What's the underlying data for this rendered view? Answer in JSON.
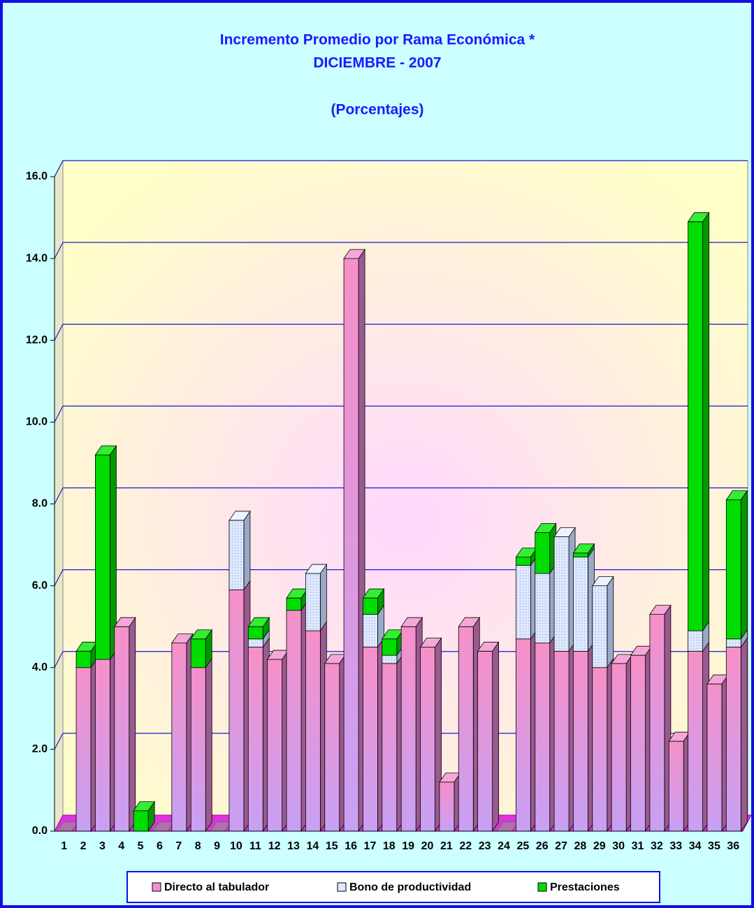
{
  "chart_data": {
    "type": "stacked-bar-3d",
    "title": "Incremento Promedio por Rama Económica *",
    "subtitle": "DICIEMBRE -  2007",
    "units": "(Porcentajes)",
    "categories": [
      "1",
      "2",
      "3",
      "4",
      "5",
      "6",
      "7",
      "8",
      "9",
      "10",
      "11",
      "12",
      "13",
      "14",
      "15",
      "16",
      "17",
      "18",
      "19",
      "20",
      "21",
      "22",
      "23",
      "24",
      "25",
      "26",
      "27",
      "28",
      "29",
      "30",
      "31",
      "32",
      "33",
      "34",
      "35",
      "36"
    ],
    "series": [
      {
        "name": "Directo al tabulador",
        "color": "#f38fd0",
        "values": [
          0,
          4.0,
          4.2,
          5.0,
          0,
          0,
          4.6,
          4.0,
          0,
          5.9,
          4.5,
          4.2,
          5.4,
          4.9,
          4.1,
          14.0,
          4.5,
          4.1,
          5.0,
          4.5,
          1.2,
          5.0,
          4.4,
          0,
          4.7,
          4.6,
          4.4,
          4.4,
          4.0,
          4.1,
          4.3,
          5.3,
          2.2,
          4.4,
          3.6,
          4.5
        ]
      },
      {
        "name": "Bono de productividad",
        "color": "#dde8ff",
        "values": [
          0,
          0,
          0,
          0,
          0,
          0,
          0,
          0,
          0,
          1.7,
          0.2,
          0,
          0,
          1.4,
          0,
          0,
          0.8,
          0.2,
          0,
          0,
          0,
          0,
          0,
          0,
          1.8,
          1.7,
          2.8,
          2.3,
          2.0,
          0,
          0,
          0,
          0,
          0.5,
          0,
          0.2
        ]
      },
      {
        "name": "Prestaciones",
        "color": "#00dd00",
        "values": [
          0,
          0.4,
          5.0,
          0,
          0.5,
          0,
          0,
          0.7,
          0,
          0,
          0.3,
          0,
          0.3,
          0,
          0,
          0,
          0.4,
          0.4,
          0,
          0,
          0,
          0,
          0,
          0,
          0.2,
          1.0,
          0,
          0.1,
          0,
          0,
          0,
          0,
          0,
          10.0,
          0,
          3.4
        ]
      }
    ],
    "ylim": [
      0,
      16
    ],
    "yticks": [
      {
        "value": 0,
        "label": "0.0"
      },
      {
        "value": 2,
        "label": "2.0"
      },
      {
        "value": 4,
        "label": "4.0"
      },
      {
        "value": 6,
        "label": "6.0"
      },
      {
        "value": 8,
        "label": "8.0"
      },
      {
        "value": 10,
        "label": "10.0"
      },
      {
        "value": 12,
        "label": "12.0"
      },
      {
        "value": 14,
        "label": "14.0"
      },
      {
        "value": 16,
        "label": "16.0"
      }
    ],
    "grid": true,
    "legend": "bottom"
  }
}
